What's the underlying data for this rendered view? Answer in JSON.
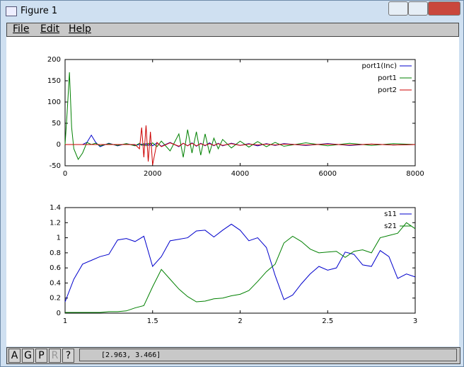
{
  "window": {
    "title": "Figure 1",
    "menu": [
      "File",
      "Edit",
      "Help"
    ],
    "toolbar": [
      "A",
      "G",
      "P",
      "R",
      "?"
    ],
    "status": "[2.963, 3.466]"
  },
  "chart_data": [
    {
      "type": "line",
      "legend": "upper right",
      "x": [
        0,
        50,
        100,
        150,
        200,
        300,
        400,
        500,
        600,
        700,
        800,
        1000,
        1200,
        1400,
        1600,
        1700,
        1750,
        1800,
        1850,
        1900,
        1950,
        2000,
        2100,
        2200,
        2400,
        2600,
        2700,
        2800,
        2900,
        3000,
        3100,
        3200,
        3300,
        3400,
        3500,
        3600,
        3800,
        4000,
        4200,
        4400,
        4600,
        4800,
        5000,
        5500,
        6000,
        6500,
        7000,
        7500,
        8000
      ],
      "series": [
        {
          "name": "port1(Inc)",
          "color": "#0000cc",
          "values": [
            0,
            0,
            0,
            0,
            0,
            0,
            0,
            5,
            22,
            5,
            -5,
            3,
            -3,
            2,
            -2,
            0,
            1,
            -2,
            2,
            -2,
            3,
            -3,
            4,
            -4,
            5,
            -5,
            3,
            -3,
            4,
            -4,
            3,
            -3,
            4,
            -3,
            3,
            -3,
            3,
            -2,
            2,
            -3,
            2,
            -2,
            2,
            -2,
            2,
            -2,
            1,
            -1,
            0
          ]
        },
        {
          "name": "port1",
          "color": "#008000",
          "values": [
            0,
            80,
            170,
            40,
            -10,
            -35,
            -20,
            5,
            0,
            3,
            -3,
            2,
            -2,
            2,
            -3,
            3,
            -2,
            2,
            -3,
            3,
            -2,
            4,
            -5,
            8,
            -15,
            25,
            -30,
            35,
            -20,
            30,
            -25,
            25,
            -20,
            15,
            -10,
            12,
            -8,
            8,
            -6,
            7,
            -5,
            5,
            -4,
            4,
            -3,
            3,
            -2,
            2,
            0
          ]
        },
        {
          "name": "port2",
          "color": "#cc0000",
          "values": [
            0,
            0,
            0,
            0,
            0,
            0,
            0,
            0,
            0,
            0,
            0,
            0,
            0,
            0,
            0,
            -10,
            40,
            -30,
            45,
            -40,
            30,
            -48,
            5,
            -5,
            4,
            -4,
            3,
            -3,
            3,
            -3,
            2,
            -2,
            2,
            -2,
            2,
            -2,
            2,
            -2,
            1,
            -1,
            1,
            -1,
            1,
            -1,
            1,
            -1,
            1,
            -1,
            0
          ]
        }
      ],
      "xlim": [
        0,
        8000
      ],
      "xticks": [
        0,
        2000,
        4000,
        6000,
        8000
      ],
      "ylim": [
        -50,
        200
      ],
      "yticks": [
        -50,
        0,
        50,
        100,
        150,
        200
      ]
    },
    {
      "type": "line",
      "legend": "upper right",
      "x": [
        1,
        1.05,
        1.1,
        1.15,
        1.2,
        1.25,
        1.3,
        1.35,
        1.4,
        1.45,
        1.5,
        1.55,
        1.6,
        1.65,
        1.7,
        1.75,
        1.8,
        1.85,
        1.9,
        1.95,
        2,
        2.05,
        2.1,
        2.15,
        2.2,
        2.25,
        2.3,
        2.35,
        2.4,
        2.45,
        2.5,
        2.55,
        2.6,
        2.65,
        2.7,
        2.75,
        2.8,
        2.85,
        2.9,
        2.95,
        3
      ],
      "series": [
        {
          "name": "s11",
          "color": "#0000cc",
          "values": [
            0.15,
            0.45,
            0.65,
            0.7,
            0.75,
            0.78,
            0.97,
            0.99,
            0.95,
            1.02,
            0.62,
            0.75,
            0.96,
            0.98,
            1.0,
            1.09,
            1.1,
            1.01,
            1.1,
            1.18,
            1.1,
            0.96,
            1.0,
            0.87,
            0.5,
            0.18,
            0.24,
            0.39,
            0.52,
            0.62,
            0.57,
            0.6,
            0.81,
            0.78,
            0.64,
            0.62,
            0.83,
            0.75,
            0.46,
            0.52,
            0.48
          ]
        },
        {
          "name": "s21",
          "color": "#008000",
          "values": [
            0.01,
            0.01,
            0.01,
            0.01,
            0.01,
            0.02,
            0.02,
            0.03,
            0.07,
            0.1,
            0.35,
            0.58,
            0.45,
            0.32,
            0.22,
            0.15,
            0.16,
            0.19,
            0.2,
            0.23,
            0.25,
            0.3,
            0.42,
            0.55,
            0.65,
            0.93,
            1.02,
            0.95,
            0.85,
            0.8,
            0.81,
            0.82,
            0.74,
            0.82,
            0.84,
            0.8,
            1.0,
            1.03,
            1.06,
            1.2,
            1.12
          ]
        }
      ],
      "xlim": [
        1,
        3
      ],
      "xticks": [
        1,
        1.5,
        2,
        2.5,
        3
      ],
      "ylim": [
        0,
        1.4
      ],
      "yticks": [
        0,
        0.2,
        0.4,
        0.6,
        0.8,
        1,
        1.2,
        1.4
      ]
    }
  ]
}
